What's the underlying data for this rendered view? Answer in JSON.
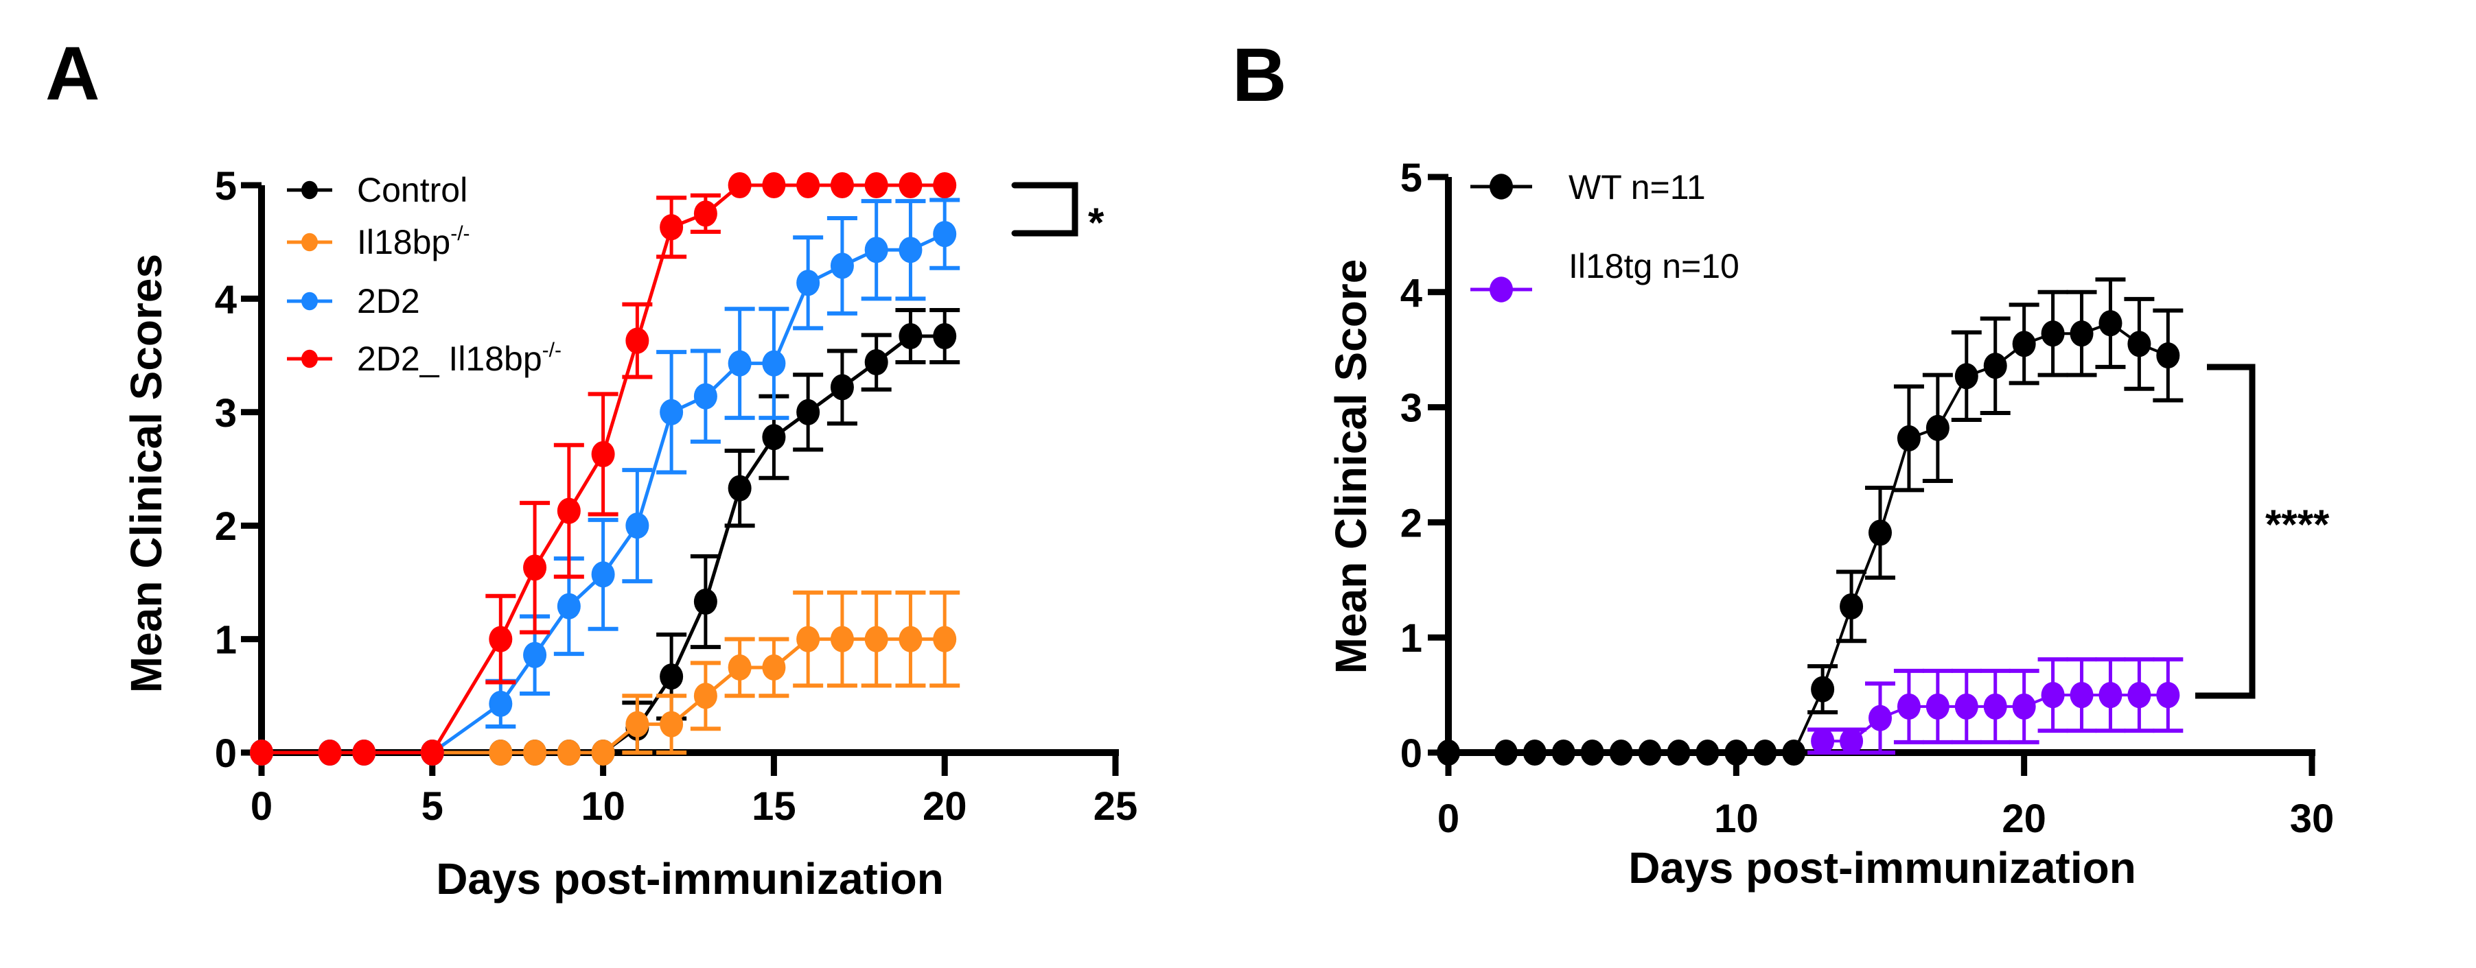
{
  "chart_data": [
    {
      "type": "line",
      "panel_label": "A",
      "title": "",
      "xlabel": "Days post-immunization",
      "ylabel": "Mean Clinical Scores",
      "xlim": [
        0,
        25
      ],
      "ylim": [
        0,
        5
      ],
      "xticks": [
        0,
        5,
        10,
        15,
        20,
        25
      ],
      "yticks": [
        0,
        1,
        2,
        3,
        4,
        5
      ],
      "grid": false,
      "legend_position": "top-left",
      "significance": {
        "label": "*",
        "between": [
          "2D2_ Il18bp-/-",
          "2D2"
        ]
      },
      "series": [
        {
          "name": "Control",
          "legend_main": "Control",
          "legend_sup": "",
          "color": "#000000",
          "x": [
            0,
            2,
            3,
            5,
            7,
            8,
            9,
            10,
            11,
            12,
            13,
            14,
            15,
            16,
            17,
            18,
            19,
            20
          ],
          "y": [
            0,
            0,
            0,
            0,
            0,
            0,
            0,
            0,
            0.22,
            0.67,
            1.33,
            2.33,
            2.78,
            3.0,
            3.22,
            3.44,
            3.67,
            3.67
          ],
          "err": [
            0,
            0,
            0,
            0,
            0,
            0,
            0,
            0,
            0.22,
            0.37,
            0.4,
            0.33,
            0.36,
            0.33,
            0.32,
            0.24,
            0.23,
            0.23
          ]
        },
        {
          "name": "Il18bp-/-",
          "legend_main": "Il18bp",
          "legend_sup": "-/-",
          "color": "#FF8A1C",
          "x": [
            0,
            2,
            3,
            5,
            7,
            8,
            9,
            10,
            11,
            12,
            13,
            14,
            15,
            16,
            17,
            18,
            19,
            20
          ],
          "y": [
            0,
            0,
            0,
            0,
            0,
            0,
            0,
            0,
            0.25,
            0.25,
            0.5,
            0.75,
            0.75,
            1.0,
            1.0,
            1.0,
            1.0,
            1.0
          ],
          "err": [
            0,
            0,
            0,
            0,
            0,
            0,
            0,
            0,
            0.25,
            0.25,
            0.29,
            0.25,
            0.25,
            0.41,
            0.41,
            0.41,
            0.41,
            0.41
          ]
        },
        {
          "name": "2D2",
          "legend_main": "2D2",
          "legend_sup": "",
          "color": "#1A85FF",
          "x": [
            0,
            2,
            3,
            5,
            7,
            8,
            9,
            10,
            11,
            12,
            13,
            14,
            15,
            16,
            17,
            18,
            19,
            20
          ],
          "y": [
            0,
            0,
            0,
            0,
            0.43,
            0.86,
            1.29,
            1.57,
            2.0,
            3.0,
            3.14,
            3.43,
            3.43,
            4.14,
            4.29,
            4.43,
            4.43,
            4.57
          ],
          "err": [
            0,
            0,
            0,
            0,
            0.2,
            0.34,
            0.42,
            0.48,
            0.49,
            0.53,
            0.4,
            0.48,
            0.48,
            0.4,
            0.42,
            0.43,
            0.43,
            0.3
          ]
        },
        {
          "name": "2D2_ Il18bp-/-",
          "legend_main": "2D2_ Il18bp",
          "legend_sup": "-/-",
          "color": "#FF0000",
          "x": [
            0,
            2,
            3,
            5,
            7,
            8,
            9,
            10,
            11,
            12,
            13,
            14,
            15,
            16,
            17,
            18,
            19,
            20
          ],
          "y": [
            0,
            0,
            0,
            0,
            1.0,
            1.63,
            2.13,
            2.63,
            3.63,
            4.63,
            4.75,
            5.0,
            5.0,
            5.0,
            5.0,
            5.0,
            5.0,
            5.0
          ],
          "err": [
            0,
            0,
            0,
            0,
            0.38,
            0.57,
            0.58,
            0.53,
            0.32,
            0.26,
            0.16,
            0,
            0,
            0,
            0,
            0,
            0,
            0
          ]
        }
      ]
    },
    {
      "type": "line",
      "panel_label": "B",
      "title": "",
      "xlabel": "Days post-immunization",
      "ylabel": "Mean Clinical Score",
      "xlim": [
        0,
        30
      ],
      "ylim": [
        0,
        5
      ],
      "xticks": [
        0,
        10,
        20,
        30
      ],
      "yticks": [
        0,
        1,
        2,
        3,
        4,
        5
      ],
      "grid": false,
      "legend_position": "top-left",
      "significance": {
        "label": "****",
        "between": [
          "WT n=11",
          "Il18tg n=10"
        ]
      },
      "series": [
        {
          "name": "WT n=11",
          "legend_main": "WT n=11",
          "legend_sup": "",
          "color": "#000000",
          "x": [
            0,
            2,
            3,
            4,
            5,
            6,
            7,
            8,
            9,
            10,
            11,
            12,
            13,
            14,
            15,
            16,
            17,
            18,
            19,
            20,
            21,
            22,
            23,
            24,
            25
          ],
          "y": [
            0,
            0,
            0,
            0,
            0,
            0,
            0,
            0,
            0,
            0,
            0,
            0,
            0.55,
            1.27,
            1.91,
            2.73,
            2.82,
            3.27,
            3.36,
            3.55,
            3.64,
            3.64,
            3.73,
            3.55,
            3.45
          ],
          "err": [
            0,
            0,
            0,
            0,
            0,
            0,
            0,
            0,
            0,
            0,
            0,
            0,
            0.2,
            0.3,
            0.39,
            0.45,
            0.46,
            0.38,
            0.41,
            0.34,
            0.36,
            0.36,
            0.38,
            0.39,
            0.39
          ]
        },
        {
          "name": "Il18tg n=10",
          "legend_main": "Il18tg n=10",
          "legend_sup": "",
          "color": "#8000FF",
          "x": [
            13,
            14,
            15,
            16,
            17,
            18,
            19,
            20,
            21,
            22,
            23,
            24,
            25
          ],
          "y": [
            0.1,
            0.1,
            0.3,
            0.4,
            0.4,
            0.4,
            0.4,
            0.4,
            0.5,
            0.5,
            0.5,
            0.5,
            0.5
          ],
          "err": [
            0.1,
            0.1,
            0.3,
            0.31,
            0.31,
            0.31,
            0.31,
            0.31,
            0.31,
            0.31,
            0.31,
            0.31,
            0.31
          ]
        }
      ]
    }
  ]
}
